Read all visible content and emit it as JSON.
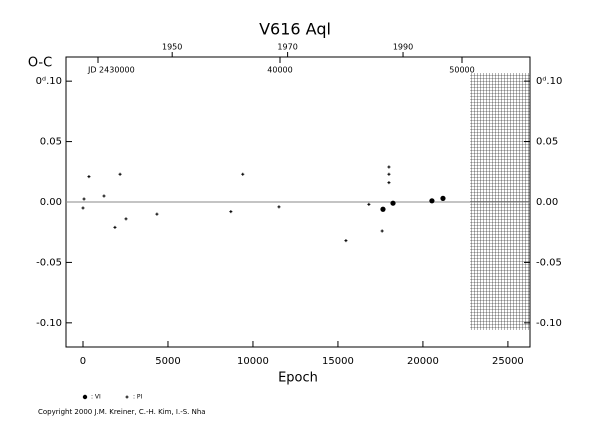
{
  "chart_data": {
    "type": "scatter",
    "title": "V616 Aql",
    "xlabel": "Epoch",
    "ylabel": "O-C",
    "copyright": "Copyright 2000 J.M. Kreiner, C.-H. Kim, I.-S. Nha",
    "xlim": [
      -1000,
      26300
    ],
    "xticks": [
      0,
      5000,
      10000,
      15000,
      20000,
      25000
    ],
    "ylim": [
      -0.12,
      0.12
    ],
    "yticks": [
      {
        "value": 0.1,
        "label": "0ᵈ.10"
      },
      {
        "value": 0.05,
        "label": "0.05"
      },
      {
        "value": 0,
        "label": "0.00"
      },
      {
        "value": -0.05,
        "label": "-0.05"
      },
      {
        "value": -0.1,
        "label": "-0.10"
      }
    ],
    "x2lim": [
      1931.6,
      2012.0
    ],
    "x2ticks": [
      1950,
      1970,
      1990
    ],
    "x3lim": [
      2428242,
      2453736
    ],
    "x3ticks": [
      {
        "value": 2430000,
        "label": "JD 2430000"
      },
      {
        "value": 2440000,
        "label": "40000"
      },
      {
        "value": 2450000,
        "label": "50000"
      }
    ],
    "series": [
      {
        "name": ": VI",
        "color": "#000000",
        "marker": "circle",
        "x": [
          17650,
          18240,
          20530,
          21180
        ],
        "values": [
          -0.006,
          -0.001,
          0.001,
          0.003
        ]
      },
      {
        "name": ": PI",
        "color": "#000000",
        "marker": "plus",
        "x": [
          0,
          60,
          350,
          1235,
          1880,
          2180,
          2530,
          4350,
          8700,
          9400,
          11530,
          15470,
          16820,
          17600,
          18000,
          18000,
          18000
        ],
        "values": [
          -0.005,
          0.0025,
          0.021,
          0.005,
          -0.021,
          0.023,
          -0.014,
          -0.01,
          -0.008,
          0.023,
          -0.004,
          -0.032,
          -0.002,
          -0.024,
          0.029,
          0.023,
          0.016
        ]
      }
    ]
  }
}
